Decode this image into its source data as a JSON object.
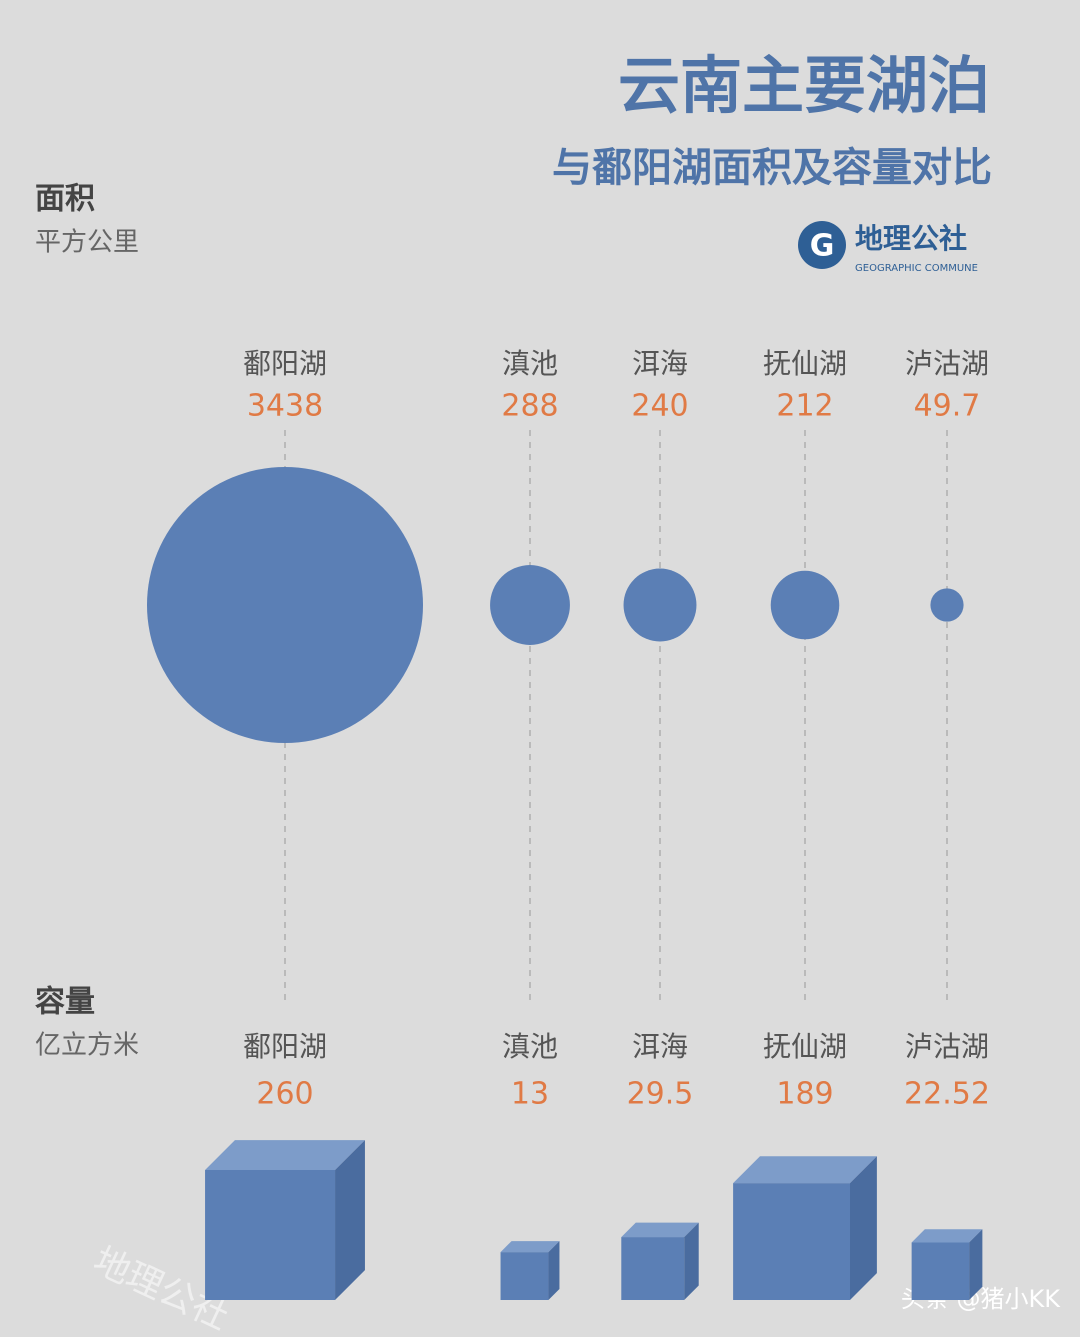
{
  "header": {
    "title": "云南主要湖泊",
    "subtitle": "与鄱阳湖面积及容量对比"
  },
  "logo": {
    "name": "地理公社",
    "english": "GEOGRAPHIC COMMUNE"
  },
  "watermark": "地理公社",
  "credit": "头条 @猪小KK",
  "chart_data": [
    {
      "type": "bubble",
      "title": "面积",
      "subtitle": "平方公里",
      "categories": [
        "鄱阳湖",
        "滇池",
        "洱海",
        "抚仙湖",
        "泸沽湖"
      ],
      "values": [
        3438,
        288,
        240,
        212,
        49.7
      ],
      "color": "#5b7fb5"
    },
    {
      "type": "cube",
      "title": "容量",
      "subtitle": "亿立方米",
      "categories": [
        "鄱阳湖",
        "滇池",
        "洱海",
        "抚仙湖",
        "泸沽湖"
      ],
      "values": [
        260,
        13,
        29.5,
        189,
        22.52
      ],
      "color": "#5b7fb5"
    }
  ]
}
